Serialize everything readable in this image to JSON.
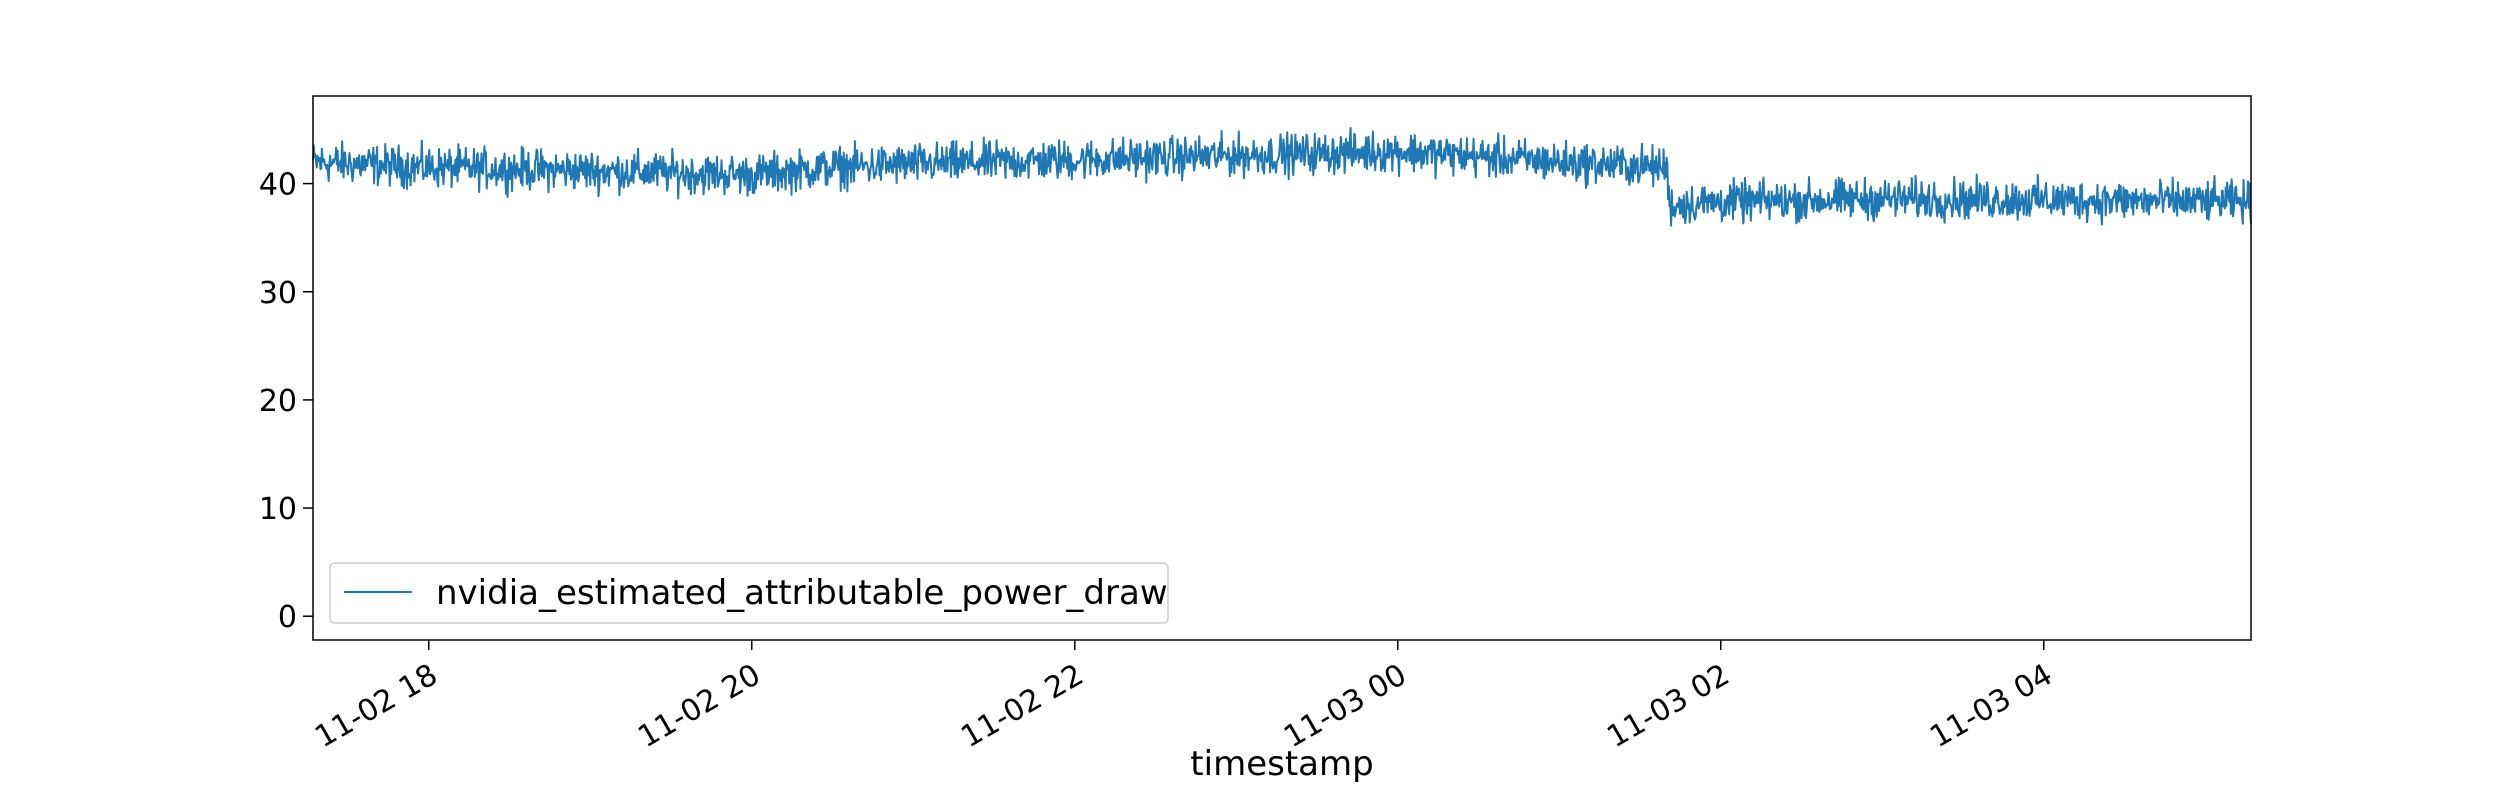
{
  "chart_data": {
    "type": "line",
    "title": "",
    "xlabel": "timestamp",
    "ylabel": "",
    "ylim": [
      -2.2,
      48.1
    ],
    "y_ticks": [
      0,
      10,
      20,
      30,
      40
    ],
    "xlim": [
      "11-02 17:17",
      "11-03 05:17"
    ],
    "x_ticks": [
      {
        "label": "11-02 18",
        "value": "11-02 18:00"
      },
      {
        "label": "11-02 20",
        "value": "11-02 20:00"
      },
      {
        "label": "11-02 22",
        "value": "11-02 22:00"
      },
      {
        "label": "11-03 00",
        "value": "11-03 00:00"
      },
      {
        "label": "11-03 02",
        "value": "11-03 02:00"
      },
      {
        "label": "11-03 04",
        "value": "11-03 04:00"
      }
    ],
    "legend_position": "lower-left",
    "grid": false,
    "series": [
      {
        "name": "nvidia_estimated_attributable_power_draw",
        "color": "#1f77b4",
        "noise_amplitude": 1.3,
        "x": [
          "11-02 17:17",
          "11-02 18:00",
          "11-02 19:00",
          "11-02 20:00",
          "11-02 20:30",
          "11-02 21:00",
          "11-02 22:00",
          "11-02 23:00",
          "11-03 00:00",
          "11-03 01:00",
          "11-03 01:40",
          "11-03 01:41",
          "11-03 02:00",
          "11-03 03:00",
          "11-03 04:00",
          "11-03 05:17"
        ],
        "values": [
          42.0,
          41.5,
          41.2,
          40.8,
          41.5,
          41.8,
          42.2,
          42.6,
          43.0,
          42.0,
          41.5,
          38.0,
          38.3,
          38.6,
          38.5,
          38.3
        ]
      }
    ]
  }
}
